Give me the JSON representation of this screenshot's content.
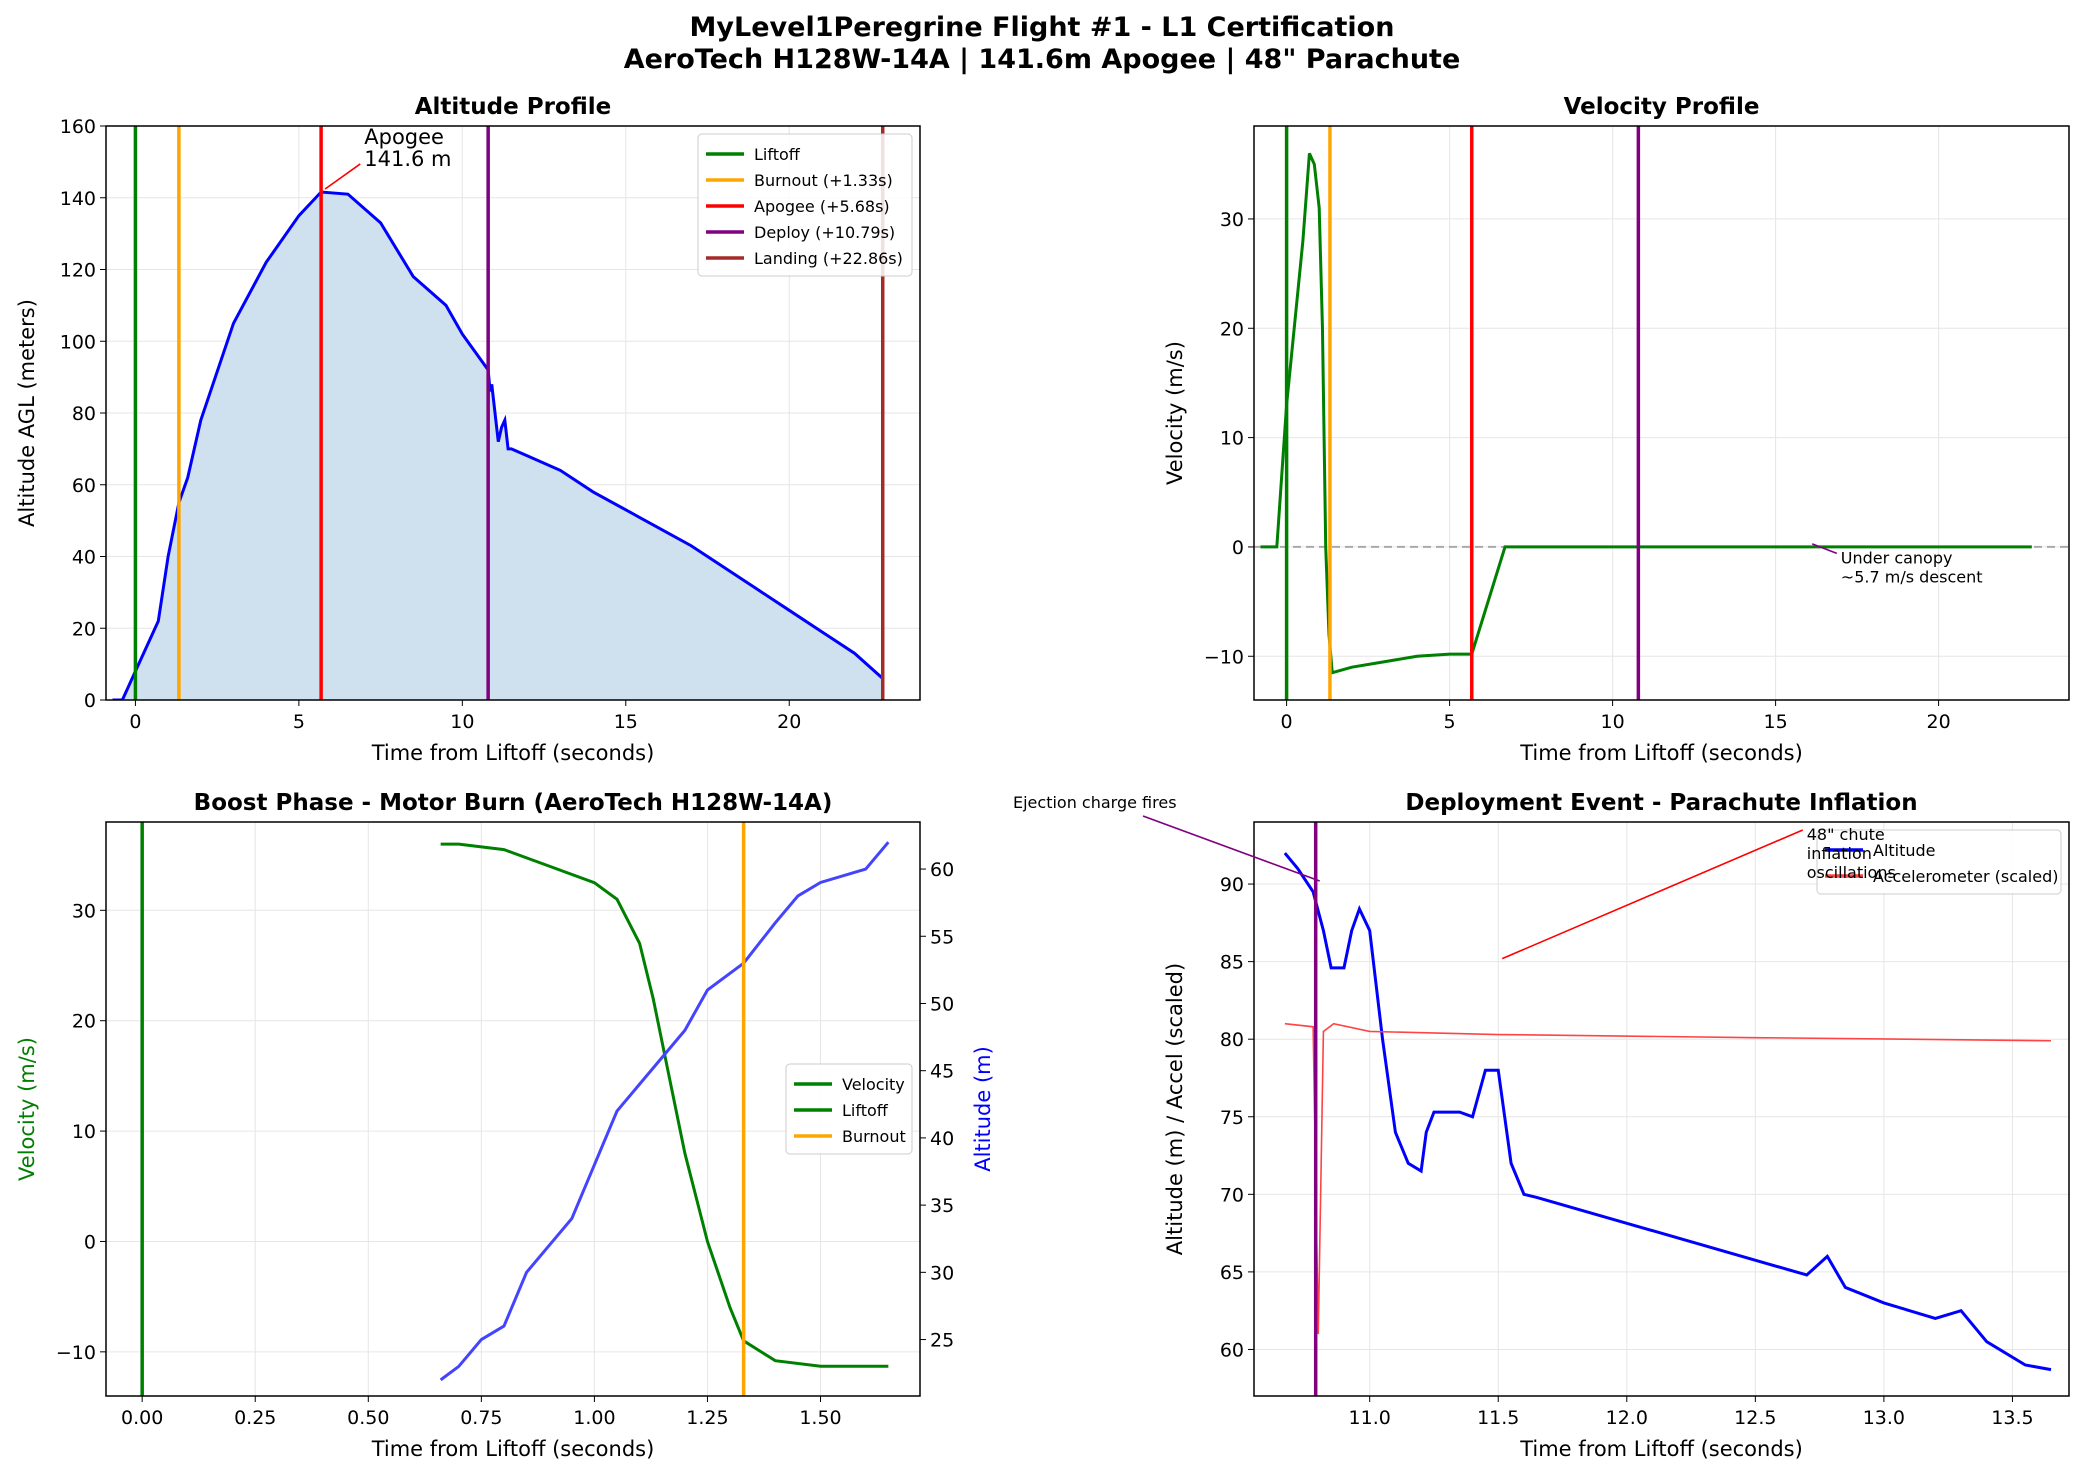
{
  "suptitle": [
    "MyLevel1Peregrine Flight #1 - L1 Certification",
    "AeroTech H128W-14A | 141.6m Apogee | 48\" Parachute"
  ],
  "chart_data": [
    {
      "type": "line",
      "title": "Altitude Profile",
      "xlabel": "Time from Liftoff (seconds)",
      "ylabel": "Altitude AGL (meters)",
      "xlim": [
        -0.9,
        24
      ],
      "ylim": [
        0,
        160
      ],
      "xticks": [
        0,
        5,
        10,
        15,
        20
      ],
      "yticks": [
        0,
        20,
        40,
        60,
        80,
        100,
        120,
        140,
        160
      ],
      "grid": true,
      "legend": "top-right",
      "fill": "#cfe1ee",
      "series": [
        {
          "color": "#0000ff",
          "x": [
            -0.7,
            -0.4,
            0,
            0.7,
            1,
            1.33,
            1.6,
            2,
            3,
            4,
            5,
            5.68,
            6.5,
            7.5,
            8.5,
            9.5,
            10,
            10.79,
            10.85,
            10.9,
            11.1,
            11.2,
            11.3,
            11.4,
            11.5,
            12,
            13,
            14,
            15,
            16,
            17,
            18,
            19,
            20,
            21,
            22,
            22.86
          ],
          "y": [
            0,
            0,
            8,
            22,
            40,
            55,
            62,
            78,
            105,
            122,
            135,
            141.6,
            141,
            133,
            118,
            110,
            102,
            92,
            86,
            88,
            72,
            76,
            78,
            70,
            70,
            68,
            64,
            58,
            53,
            48,
            43,
            37,
            31,
            25,
            19,
            13,
            6
          ]
        }
      ],
      "vlines": [
        {
          "x": 0,
          "label": "Liftoff",
          "color": "#008000"
        },
        {
          "x": 1.33,
          "label": "Burnout (+1.33s)",
          "color": "#ffa500"
        },
        {
          "x": 5.68,
          "label": "Apogee (+5.68s)",
          "color": "#ff0000"
        },
        {
          "x": 10.79,
          "label": "Deploy (+10.79s)",
          "color": "#800080"
        },
        {
          "x": 22.86,
          "label": "Landing (+22.86s)",
          "color": "#a52a2a"
        }
      ],
      "annotations": [
        {
          "text": [
            "Apogee",
            "141.6 m"
          ],
          "x": 5.68,
          "y": 141.6
        }
      ]
    },
    {
      "type": "line",
      "title": "Velocity Profile",
      "xlabel": "Time from Liftoff (seconds)",
      "ylabel": "Velocity (m/s)",
      "xlim": [
        -1,
        24
      ],
      "ylim": [
        -14,
        38.5
      ],
      "xticks": [
        0,
        5,
        10,
        15,
        20
      ],
      "yticks": [
        -10,
        0,
        10,
        20,
        30
      ],
      "grid": true,
      "series": [
        {
          "color": "#008000",
          "x": [
            -0.8,
            -0.3,
            0,
            0.5,
            0.7,
            0.85,
            1.0,
            1.1,
            1.2,
            1.3,
            1.4,
            2,
            3,
            4,
            5,
            5.68,
            6.7,
            22.86
          ],
          "y": [
            0,
            0,
            13,
            28,
            36,
            35,
            31,
            20,
            0,
            -8,
            -11.5,
            -11,
            -10.5,
            -10,
            -9.8,
            -9.8,
            0,
            0
          ]
        }
      ],
      "hline": {
        "y": 0,
        "color": "#aaaaaa"
      },
      "vlines": [
        {
          "x": 0,
          "color": "#008000"
        },
        {
          "x": 1.33,
          "color": "#ffa500"
        },
        {
          "x": 5.68,
          "color": "#ff0000"
        },
        {
          "x": 10.79,
          "color": "#800080"
        }
      ],
      "annotations": [
        {
          "text": [
            "Under canopy",
            "~5.7 m/s descent"
          ],
          "x": 16,
          "y": 0
        }
      ]
    },
    {
      "type": "line",
      "title": "Boost Phase - Motor Burn (AeroTech H128W-14A)",
      "xlabel": "Time from Liftoff (seconds)",
      "ylabel": "Velocity (m/s)",
      "y2label": "Altitude (m)",
      "xlim": [
        -0.08,
        1.72
      ],
      "ylim": [
        -14,
        38
      ],
      "y2lim": [
        20.8,
        63.5
      ],
      "xticks": [
        0,
        0.25,
        0.5,
        0.75,
        1.0,
        1.25,
        1.5
      ],
      "xticklabels": [
        "0.00",
        "0.25",
        "0.50",
        "0.75",
        "1.00",
        "1.25",
        "1.50"
      ],
      "yticks": [
        -10,
        0,
        10,
        20,
        30
      ],
      "y2ticks": [
        25,
        30,
        35,
        40,
        45,
        50,
        55,
        60
      ],
      "grid": true,
      "legend": "center-right",
      "series": [
        {
          "name": "Velocity",
          "color": "#008000",
          "axis": "left",
          "x": [
            0.66,
            0.7,
            0.8,
            0.9,
            1.0,
            1.05,
            1.1,
            1.13,
            1.17,
            1.2,
            1.25,
            1.3,
            1.33,
            1.4,
            1.5,
            1.65
          ],
          "y": [
            36,
            36,
            35.5,
            34,
            32.5,
            31,
            27,
            22,
            14,
            8,
            0,
            -6,
            -9,
            -10.8,
            -11.3,
            -11.3
          ]
        },
        {
          "name": "Altitude",
          "color": "#4444ff",
          "axis": "right",
          "x": [
            0.66,
            0.7,
            0.75,
            0.8,
            0.85,
            0.9,
            0.95,
            1.0,
            1.05,
            1.1,
            1.15,
            1.2,
            1.25,
            1.33,
            1.4,
            1.45,
            1.5,
            1.6,
            1.65
          ],
          "y": [
            22,
            23,
            25,
            26,
            30,
            32,
            34,
            38,
            42,
            44,
            46,
            48,
            51,
            53,
            56,
            58,
            59,
            60,
            62
          ]
        }
      ],
      "vlines": [
        {
          "x": 0,
          "label": "Liftoff",
          "color": "#008000"
        },
        {
          "x": 1.33,
          "label": "Burnout",
          "color": "#ffa500"
        }
      ]
    },
    {
      "type": "line",
      "title": "Deployment Event - Parachute Inflation",
      "xlabel": "Time from Liftoff (seconds)",
      "ylabel": "Altitude (m) / Accel (scaled)",
      "xlim": [
        10.55,
        13.72
      ],
      "ylim": [
        57,
        94
      ],
      "xticks": [
        11.0,
        11.5,
        12.0,
        12.5,
        13.0,
        13.5
      ],
      "xticklabels": [
        "11.0",
        "11.5",
        "12.0",
        "12.5",
        "13.0",
        "13.5"
      ],
      "yticks": [
        60,
        65,
        70,
        75,
        80,
        85,
        90
      ],
      "grid": true,
      "legend": "top-right",
      "series": [
        {
          "name": "Altitude",
          "color": "#0000ff",
          "x": [
            10.67,
            10.72,
            10.78,
            10.82,
            10.85,
            10.9,
            10.93,
            10.96,
            11.0,
            11.05,
            11.1,
            11.15,
            11.2,
            11.22,
            11.25,
            11.35,
            11.4,
            11.45,
            11.5,
            11.55,
            11.6,
            11.65,
            12.7,
            12.78,
            12.85,
            13.0,
            13.2,
            13.3,
            13.4,
            13.55,
            13.65
          ],
          "y": [
            92,
            91,
            89.5,
            87,
            84.6,
            84.6,
            87,
            88.4,
            87,
            80,
            74,
            72,
            71.5,
            74,
            75.3,
            75.3,
            75,
            78,
            78,
            72,
            70,
            69.8,
            64.8,
            66,
            64,
            63,
            62,
            62.5,
            60.5,
            59,
            58.7
          ]
        },
        {
          "name": "Accelerometer (scaled)",
          "color": "#ff4444",
          "x": [
            10.67,
            10.78,
            10.8,
            10.82,
            10.86,
            11.0,
            11.5,
            12.5,
            13.65
          ],
          "y": [
            81,
            80.8,
            61,
            80.5,
            81,
            80.5,
            80.3,
            80.1,
            79.9
          ]
        }
      ],
      "vlines": [
        {
          "x": 10.79,
          "color": "#800080"
        }
      ],
      "annotations": [
        {
          "text": [
            "Ejection charge fires"
          ],
          "x": 10.79,
          "y": 90
        },
        {
          "text": [
            "48\" chute",
            "inflation",
            "oscillations"
          ],
          "x": 11.5,
          "y": 85
        }
      ]
    }
  ]
}
